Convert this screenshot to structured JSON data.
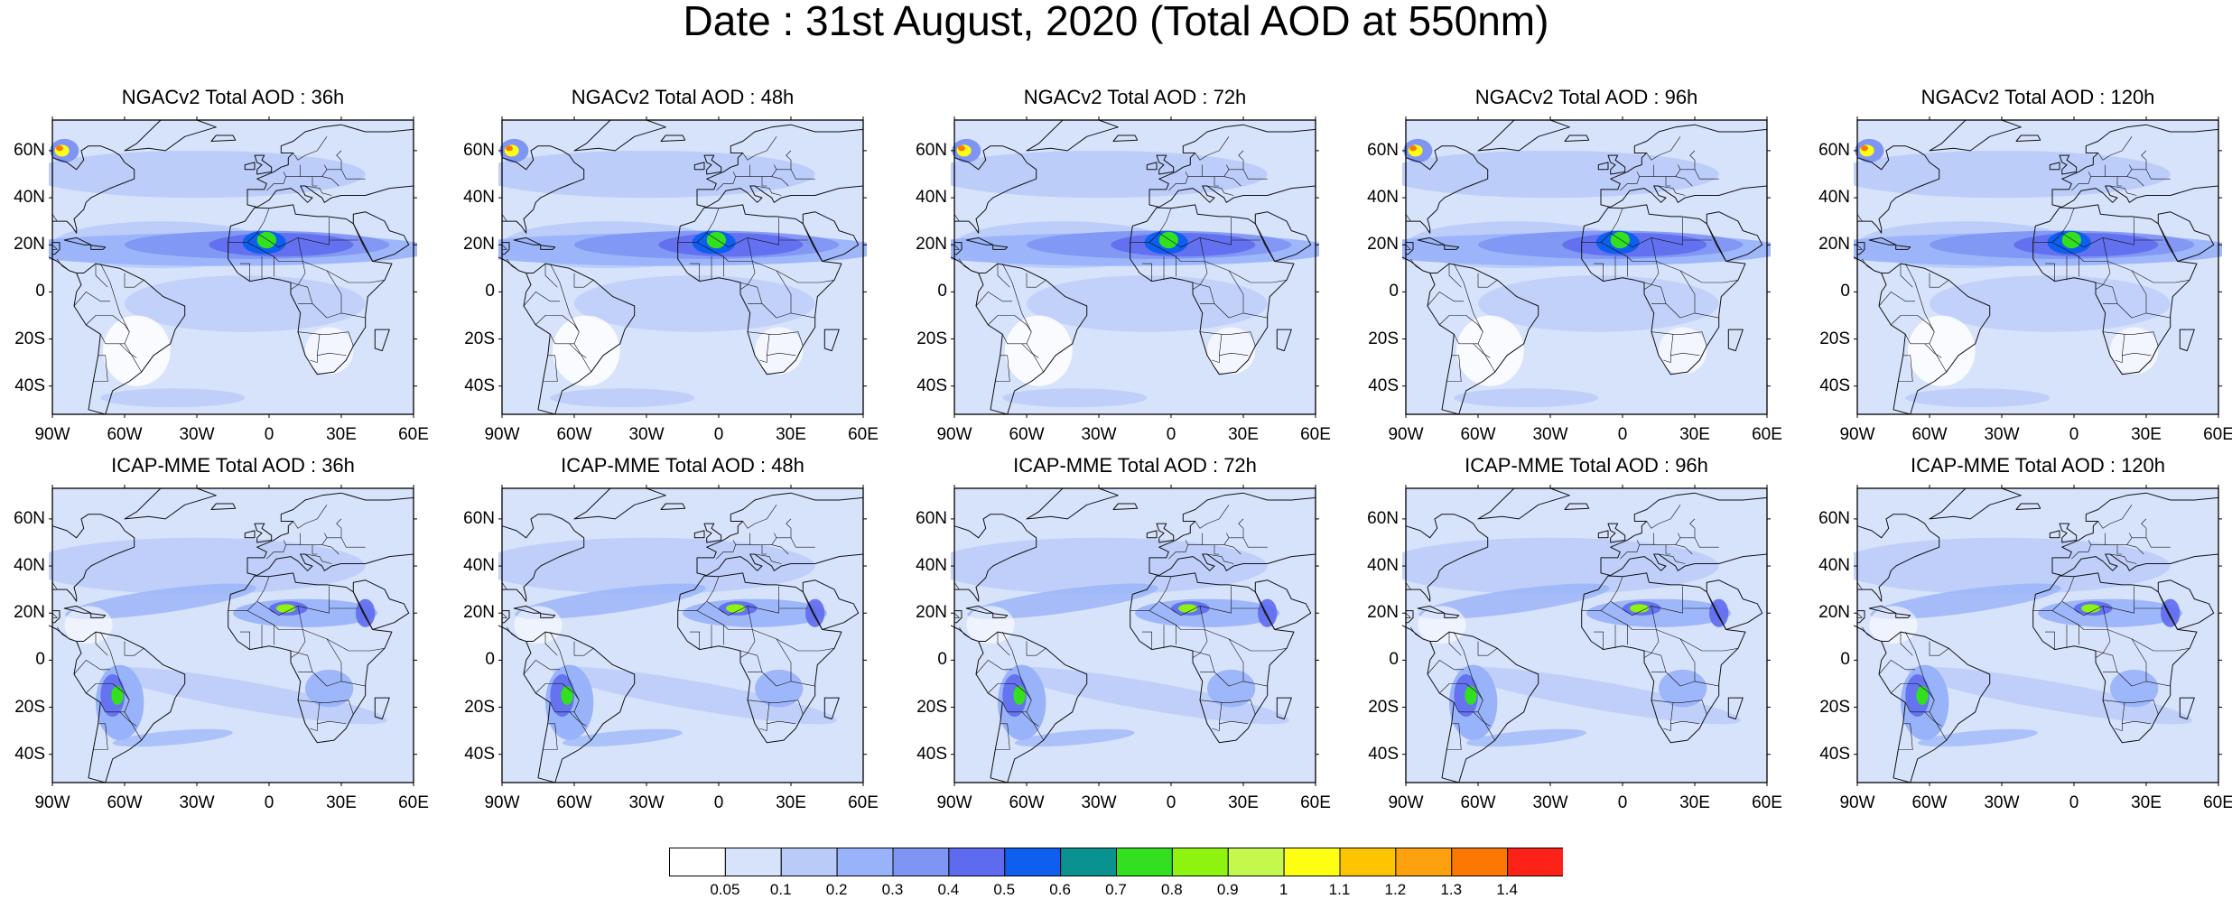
{
  "title": "Date : 31st August, 2020 (Total AOD at 550nm)",
  "rows": [
    {
      "model": "NGACv2",
      "panels": [
        {
          "title": "NGACv2 Total AOD : 36h"
        },
        {
          "title": "NGACv2 Total AOD : 48h"
        },
        {
          "title": "NGACv2 Total AOD : 72h"
        },
        {
          "title": "NGACv2 Total AOD : 96h"
        },
        {
          "title": "NGACv2 Total AOD : 120h"
        }
      ]
    },
    {
      "model": "ICAP-MME",
      "panels": [
        {
          "title": "ICAP-MME Total AOD : 36h"
        },
        {
          "title": "ICAP-MME Total AOD : 48h"
        },
        {
          "title": "ICAP-MME Total AOD : 72h"
        },
        {
          "title": "ICAP-MME Total AOD : 96h"
        },
        {
          "title": "ICAP-MME Total AOD : 120h"
        }
      ]
    }
  ],
  "lat_labels": [
    "60N",
    "40N",
    "20N",
    "0",
    "20S",
    "40S"
  ],
  "lon_labels": [
    "90W",
    "60W",
    "30W",
    "0",
    "30E",
    "60E"
  ],
  "colorbar": {
    "labels": [
      "0.05",
      "0.1",
      "0.2",
      "0.3",
      "0.4",
      "0.5",
      "0.6",
      "0.7",
      "0.8",
      "0.9",
      "1",
      "1.1",
      "1.2",
      "1.3",
      "1.4"
    ],
    "colors": [
      "#ffffff",
      "#d7e2fb",
      "#b9cbf9",
      "#98b3f9",
      "#7e95f3",
      "#5f6bee",
      "#0e5fef",
      "#09928f",
      "#32e01f",
      "#8ef30f",
      "#c4f84d",
      "#fefe12",
      "#fdc500",
      "#fea10e",
      "#fd7802",
      "#fd2217"
    ]
  }
}
